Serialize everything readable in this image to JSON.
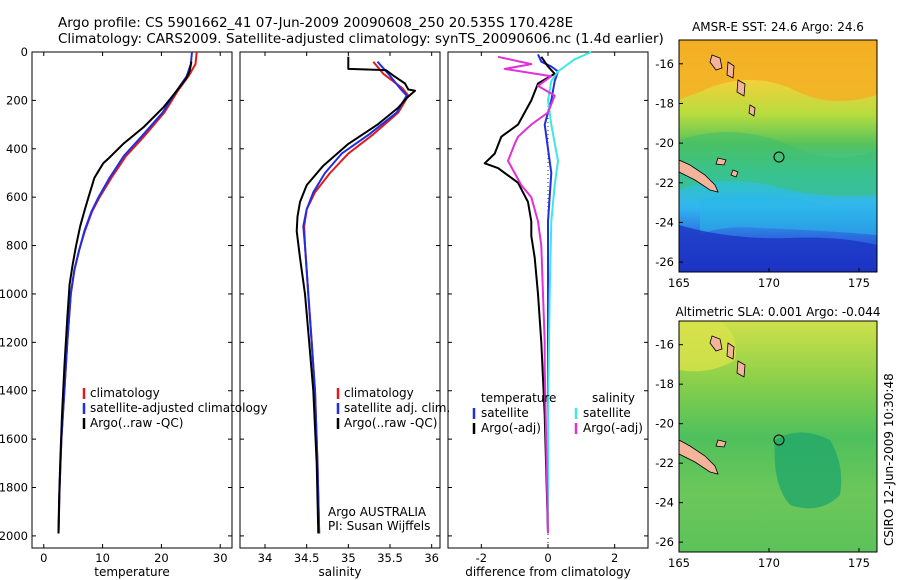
{
  "figure": {
    "title_line1": "Argo profile: CS 5901662_41 07-Jun-2009 20090608_250 20.535S 170.428E",
    "title_line2": "Climatology: CARS2009. Satellite-adjusted climatology: synTS_20090606.nc (1.4d earlier)",
    "footer_vertical": "CSIRO 12-Jun-2009 10:30:48",
    "credit_line1": "Argo AUSTRALIA",
    "credit_line2": "PI: Susan Wijffels"
  },
  "colors": {
    "climatology": "#e31a1c",
    "satellite": "#1f2fe0",
    "argo": "#000000",
    "satellite_diff": "#3ee6e6",
    "argo_adj_diff": "#e030d8",
    "coast": "#f4b49c"
  },
  "chart_data": [
    {
      "type": "line",
      "id": "temperature",
      "xlabel": "temperature",
      "xlim": [
        -2,
        32
      ],
      "xticks": [
        0,
        10,
        20,
        30
      ],
      "ylim": [
        2050,
        0
      ],
      "yticks": [
        0,
        200,
        400,
        600,
        800,
        1000,
        1200,
        1400,
        1600,
        1800,
        2000
      ],
      "legend": {
        "position": "lower-left",
        "entries": [
          "climatology",
          "satellite-adjusted climatology",
          "Argo(..raw -QC)"
        ]
      },
      "series": [
        {
          "name": "climatology",
          "color_key": "climatology",
          "points": [
            [
              26.0,
              0
            ],
            [
              25.8,
              50
            ],
            [
              24.6,
              100
            ],
            [
              22.8,
              160
            ],
            [
              20.5,
              250
            ],
            [
              17.0,
              350
            ],
            [
              14.0,
              430
            ],
            [
              11.5,
              520
            ],
            [
              9.5,
              600
            ],
            [
              8.2,
              660
            ],
            [
              7.0,
              740
            ],
            [
              6.0,
              820
            ],
            [
              5.2,
              900
            ],
            [
              4.6,
              1000
            ],
            [
              4.0,
              1200
            ],
            [
              3.5,
              1400
            ],
            [
              3.0,
              1600
            ],
            [
              2.7,
              1800
            ],
            [
              2.5,
              1990
            ]
          ]
        },
        {
          "name": "satellite-adjusted climatology",
          "color_key": "satellite",
          "points": [
            [
              25.2,
              0
            ],
            [
              25.0,
              50
            ],
            [
              24.3,
              100
            ],
            [
              22.6,
              160
            ],
            [
              20.2,
              250
            ],
            [
              16.6,
              350
            ],
            [
              13.6,
              430
            ],
            [
              11.2,
              520
            ],
            [
              9.3,
              600
            ],
            [
              8.1,
              660
            ],
            [
              6.9,
              740
            ],
            [
              6.0,
              820
            ],
            [
              5.2,
              900
            ],
            [
              4.6,
              1000
            ],
            [
              4.0,
              1200
            ],
            [
              3.5,
              1400
            ],
            [
              3.0,
              1600
            ],
            [
              2.7,
              1800
            ],
            [
              2.5,
              1990
            ]
          ]
        },
        {
          "name": "Argo(..raw -QC)",
          "color_key": "argo",
          "points": [
            [
              25.1,
              40
            ],
            [
              24.8,
              80
            ],
            [
              24.2,
              110
            ],
            [
              22.3,
              170
            ],
            [
              20.3,
              230
            ],
            [
              17.0,
              310
            ],
            [
              13.5,
              380
            ],
            [
              11.0,
              440
            ],
            [
              10.1,
              460
            ],
            [
              8.6,
              520
            ],
            [
              7.6,
              600
            ],
            [
              7.0,
              650
            ],
            [
              6.2,
              720
            ],
            [
              5.5,
              800
            ],
            [
              4.9,
              880
            ],
            [
              4.4,
              960
            ],
            [
              4.0,
              1100
            ],
            [
              3.5,
              1300
            ],
            [
              3.1,
              1500
            ],
            [
              2.8,
              1700
            ],
            [
              2.6,
              1850
            ],
            [
              2.5,
              1990
            ]
          ]
        }
      ]
    },
    {
      "type": "line",
      "id": "salinity",
      "xlabel": "salinity",
      "xlim": [
        33.7,
        36.1
      ],
      "xticks": [
        34,
        34.5,
        35,
        35.5,
        36
      ],
      "ylim": [
        2050,
        0
      ],
      "legend": {
        "position": "lower-center",
        "entries": [
          "climatology",
          "satellite adj. clim.",
          "Argo(..raw -QC)"
        ]
      },
      "series": [
        {
          "name": "climatology",
          "color_key": "climatology",
          "points": [
            [
              35.3,
              40
            ],
            [
              35.42,
              90
            ],
            [
              35.65,
              150
            ],
            [
              35.72,
              180
            ],
            [
              35.6,
              250
            ],
            [
              35.3,
              340
            ],
            [
              35.0,
              420
            ],
            [
              34.78,
              500
            ],
            [
              34.6,
              580
            ],
            [
              34.5,
              650
            ],
            [
              34.47,
              720
            ],
            [
              34.48,
              800
            ],
            [
              34.52,
              1000
            ],
            [
              34.56,
              1200
            ],
            [
              34.6,
              1400
            ],
            [
              34.63,
              1700
            ],
            [
              34.65,
              1990
            ]
          ]
        },
        {
          "name": "satellite adj. clim.",
          "color_key": "satellite",
          "points": [
            [
              35.35,
              40
            ],
            [
              35.48,
              90
            ],
            [
              35.62,
              150
            ],
            [
              35.7,
              180
            ],
            [
              35.58,
              250
            ],
            [
              35.25,
              340
            ],
            [
              34.92,
              420
            ],
            [
              34.72,
              500
            ],
            [
              34.58,
              580
            ],
            [
              34.5,
              650
            ],
            [
              34.46,
              720
            ],
            [
              34.48,
              800
            ],
            [
              34.52,
              1000
            ],
            [
              34.56,
              1200
            ],
            [
              34.6,
              1400
            ],
            [
              34.63,
              1700
            ],
            [
              34.65,
              1990
            ]
          ]
        },
        {
          "name": "Argo(..raw -QC)",
          "color_key": "argo",
          "points": [
            [
              35.0,
              20
            ],
            [
              35.0,
              70
            ],
            [
              35.45,
              75
            ],
            [
              35.55,
              100
            ],
            [
              35.68,
              130
            ],
            [
              35.72,
              155
            ],
            [
              35.8,
              160
            ],
            [
              35.7,
              190
            ],
            [
              35.6,
              230
            ],
            [
              35.35,
              300
            ],
            [
              35.0,
              380
            ],
            [
              34.7,
              470
            ],
            [
              34.5,
              550
            ],
            [
              34.42,
              620
            ],
            [
              34.39,
              680
            ],
            [
              34.38,
              740
            ],
            [
              34.42,
              850
            ],
            [
              34.48,
              1000
            ],
            [
              34.53,
              1200
            ],
            [
              34.58,
              1400
            ],
            [
              34.62,
              1700
            ],
            [
              34.64,
              1990
            ]
          ]
        }
      ]
    },
    {
      "type": "line",
      "id": "difference",
      "xlabel": "difference from climatology",
      "xlim": [
        -3,
        3
      ],
      "xticks": [
        -2,
        0,
        2
      ],
      "ylim": [
        2050,
        0
      ],
      "legend": {
        "position": "lower",
        "columns": [
          {
            "title": "temperature",
            "entries": [
              "satellite",
              "Argo(-adj)"
            ]
          },
          {
            "title": "salinity",
            "entries": [
              "satellite",
              "Argo(-adj)"
            ]
          }
        ]
      },
      "series": [
        {
          "name": "temperature satellite",
          "color_key": "satellite",
          "points": [
            [
              -0.3,
              10
            ],
            [
              -0.2,
              40
            ],
            [
              0.1,
              60
            ],
            [
              0.3,
              80
            ],
            [
              0.2,
              120
            ],
            [
              0.1,
              200
            ],
            [
              -0.1,
              300
            ],
            [
              0.0,
              400
            ],
            [
              0.1,
              500
            ],
            [
              0.0,
              700
            ],
            [
              0.0,
              1000
            ],
            [
              0.0,
              1500
            ],
            [
              0.0,
              1990
            ]
          ]
        },
        {
          "name": "temperature Argo(-adj)",
          "color_key": "argo",
          "points": [
            [
              -0.2,
              20
            ],
            [
              0.0,
              60
            ],
            [
              0.2,
              90
            ],
            [
              -0.3,
              130
            ],
            [
              -0.5,
              200
            ],
            [
              -0.9,
              300
            ],
            [
              -1.4,
              350
            ],
            [
              -1.6,
              420
            ],
            [
              -1.9,
              460
            ],
            [
              -1.5,
              480
            ],
            [
              -0.9,
              540
            ],
            [
              -0.6,
              620
            ],
            [
              -0.5,
              700
            ],
            [
              -0.5,
              760
            ],
            [
              -0.4,
              850
            ],
            [
              -0.3,
              1000
            ],
            [
              -0.2,
              1200
            ],
            [
              -0.1,
              1500
            ],
            [
              0.0,
              1990
            ]
          ]
        },
        {
          "name": "salinity satellite",
          "color_key": "satellite_diff",
          "points": [
            [
              1.3,
              0
            ],
            [
              0.8,
              30
            ],
            [
              0.5,
              60
            ],
            [
              0.3,
              80
            ],
            [
              0.1,
              120
            ],
            [
              0.0,
              200
            ],
            [
              0.1,
              300
            ],
            [
              0.3,
              450
            ],
            [
              0.2,
              550
            ],
            [
              0.1,
              700
            ],
            [
              0.05,
              1000
            ],
            [
              0.0,
              1500
            ],
            [
              0.0,
              1990
            ]
          ]
        },
        {
          "name": "salinity Argo(-adj)",
          "color_key": "argo_adj_diff",
          "points": [
            [
              -1.5,
              20
            ],
            [
              -0.5,
              50
            ],
            [
              -1.3,
              70
            ],
            [
              0.1,
              100
            ],
            [
              -0.3,
              140
            ],
            [
              0.2,
              180
            ],
            [
              0.0,
              250
            ],
            [
              -0.5,
              300
            ],
            [
              -0.9,
              350
            ],
            [
              -1.0,
              380
            ],
            [
              -1.2,
              450
            ],
            [
              -0.8,
              550
            ],
            [
              -0.5,
              600
            ],
            [
              -0.3,
              700
            ],
            [
              -0.2,
              800
            ],
            [
              -0.15,
              1000
            ],
            [
              -0.1,
              1200
            ],
            [
              -0.1,
              1300
            ],
            [
              0.0,
              1990
            ]
          ]
        }
      ]
    },
    {
      "type": "heatmap",
      "id": "sst_map",
      "title": "AMSR-E SST: 24.6 Argo: 24.6",
      "xlim": [
        165,
        176
      ],
      "ylim": [
        -26.5,
        -14.8
      ],
      "xticks": [
        165,
        170,
        175
      ],
      "yticks": [
        -16,
        -18,
        -20,
        -22,
        -24,
        -26
      ],
      "marker": {
        "lon": 170.43,
        "lat": -20.54
      }
    },
    {
      "type": "heatmap",
      "id": "sla_map",
      "title": "Altimetric SLA: 0.001 Argo: -0.044",
      "xlim": [
        165,
        176
      ],
      "ylim": [
        -26.5,
        -14.8
      ],
      "xticks": [
        165,
        170,
        175
      ],
      "yticks": [
        -16,
        -18,
        -20,
        -22,
        -24,
        -26
      ],
      "marker": {
        "lon": 170.43,
        "lat": -20.54
      }
    }
  ]
}
